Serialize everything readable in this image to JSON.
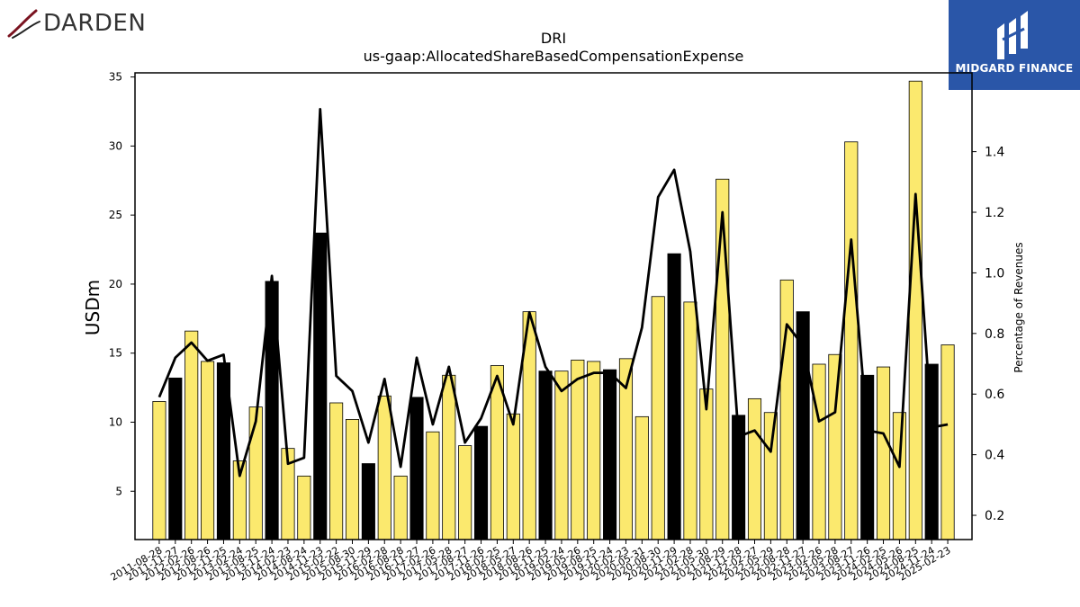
{
  "branding": {
    "company_logo": "DARDEN",
    "publisher_logo": "MIDGARD FINANCE"
  },
  "chart_data": {
    "type": "bar",
    "title": "DRI",
    "subtitle": "us-gaap:AllocatedShareBasedCompensationExpense",
    "ylabel": "USDm",
    "y2label": "Percentage of Revenues",
    "ylim": [
      1.5,
      35.3
    ],
    "y2lim": [
      0.12,
      1.66
    ],
    "yticks": [
      5,
      10,
      15,
      20,
      25,
      30,
      35
    ],
    "y2ticks": [
      0.2,
      0.4,
      0.6,
      0.8,
      1.0,
      1.2,
      1.4
    ],
    "colors": {
      "bar_primary": "#fbe96e",
      "bar_highlight": "#000000",
      "line": "#000000"
    },
    "categories": [
      "2011-08-28",
      "2011-11-27",
      "2012-02-26",
      "2012-08-26",
      "2012-11-25",
      "2013-02-24",
      "2013-08-25",
      "2013-11-24",
      "2014-02-23",
      "2014-08-24",
      "2014-11-23",
      "2015-02-22",
      "2015-08-30",
      "2015-11-29",
      "2016-02-28",
      "2016-08-28",
      "2016-11-27",
      "2017-02-26",
      "2017-05-28",
      "2017-08-27",
      "2017-11-26",
      "2018-02-25",
      "2018-05-27",
      "2018-08-26",
      "2018-11-25",
      "2019-02-24",
      "2019-05-26",
      "2019-08-25",
      "2019-11-24",
      "2020-02-23",
      "2020-05-31",
      "2020-08-30",
      "2020-11-29",
      "2021-02-28",
      "2021-05-30",
      "2021-08-29",
      "2021-11-28",
      "2022-02-27",
      "2022-05-29",
      "2022-08-28",
      "2022-11-27",
      "2023-02-26",
      "2023-05-28",
      "2023-08-27",
      "2023-11-26",
      "2024-02-25",
      "2024-05-26",
      "2024-08-25",
      "2024-11-24",
      "2025-02-23"
    ],
    "series": [
      {
        "values": [
          11.5,
          13.2,
          16.6,
          14.4,
          14.3,
          7.2,
          11.1,
          20.2,
          8.1,
          6.1,
          23.7,
          11.4,
          10.2,
          7.0,
          11.9,
          6.1,
          11.8,
          9.3,
          13.4,
          8.3,
          9.7,
          14.1,
          10.6,
          18.0,
          13.7,
          13.7,
          14.5,
          14.4,
          13.8,
          14.6,
          10.4,
          19.1,
          22.2,
          18.7,
          12.4,
          27.6,
          10.5,
          11.7,
          10.7,
          20.3,
          18.0,
          14.2,
          14.9,
          30.3,
          13.4,
          14.0,
          10.7,
          34.7,
          14.2,
          15.6
        ],
        "highlight": [
          false,
          true,
          false,
          false,
          true,
          false,
          false,
          true,
          false,
          false,
          true,
          false,
          false,
          true,
          false,
          false,
          true,
          false,
          false,
          false,
          true,
          false,
          false,
          false,
          true,
          false,
          false,
          false,
          true,
          false,
          false,
          false,
          true,
          false,
          false,
          false,
          true,
          false,
          false,
          false,
          true,
          false,
          false,
          false,
          true,
          false,
          false,
          false,
          true,
          false
        ]
      },
      {
        "axis": "right",
        "values": [
          0.59,
          0.72,
          0.77,
          0.71,
          0.73,
          0.33,
          0.51,
          0.99,
          0.37,
          0.39,
          1.54,
          0.66,
          0.61,
          0.44,
          0.65,
          0.36,
          0.72,
          0.5,
          0.69,
          0.44,
          0.52,
          0.66,
          0.5,
          0.87,
          0.69,
          0.61,
          0.65,
          0.67,
          0.67,
          0.62,
          0.82,
          1.25,
          1.34,
          1.07,
          0.55,
          1.2,
          0.46,
          0.48,
          0.41,
          0.83,
          0.76,
          0.51,
          0.54,
          1.11,
          0.48,
          0.47,
          0.36,
          1.26,
          0.49,
          0.5
        ]
      }
    ]
  }
}
